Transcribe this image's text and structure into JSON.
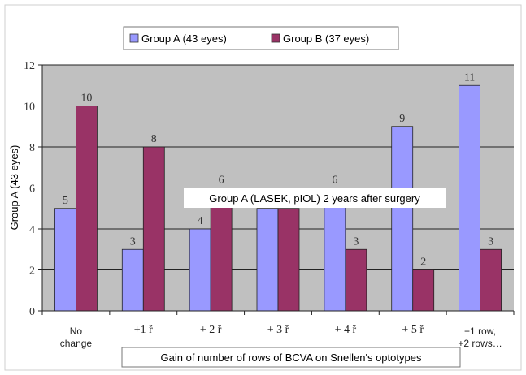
{
  "chart_data": {
    "type": "bar",
    "title": "",
    "xlabel": "Gain of number of rows of BCVA on Snellen's optotypes",
    "ylabel": "Group A (43 eyes)",
    "ylim": [
      0,
      12
    ],
    "yticks": [
      0,
      2,
      4,
      6,
      8,
      10,
      12
    ],
    "categories": [
      [
        "No",
        "change"
      ],
      [
        "+1 ř"
      ],
      [
        "+ 2 ř"
      ],
      [
        "+ 3 ř"
      ],
      [
        "+ 4 ř"
      ],
      [
        "+ 5 ř"
      ],
      [
        "+1 row,",
        "+2 rows…"
      ]
    ],
    "series": [
      {
        "name": "Group A (43 eyes)",
        "values": [
          5,
          3,
          4,
          5,
          6,
          9,
          11
        ],
        "color": "#9999ff"
      },
      {
        "name": "Group B (37 eyes)",
        "values": [
          10,
          8,
          6,
          5,
          3,
          2,
          3
        ],
        "color": "#993366"
      }
    ],
    "annotation": "Group A (LASEK, pIOL) 2 years after surgery",
    "legend_position": "top",
    "grid": true,
    "plot_background": "#c0c0c0"
  }
}
